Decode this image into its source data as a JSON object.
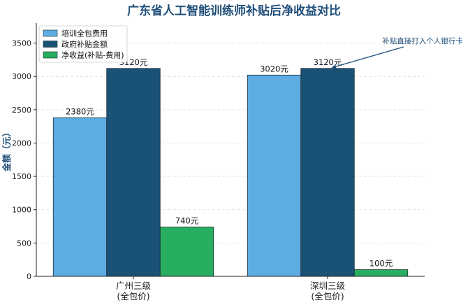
{
  "chart_data": {
    "type": "bar",
    "title": "广东省人工智能训练师补贴后净收益对比",
    "ylabel": "金额（元）",
    "xlabel": "",
    "categories": [
      [
        "广州三级",
        "(全包价)"
      ],
      [
        "深圳三级",
        "(全包价)"
      ]
    ],
    "ylim": [
      0,
      3800
    ],
    "yticks": [
      0,
      500,
      1000,
      1500,
      2000,
      2500,
      3000,
      3500
    ],
    "grid": "horizontal-dashed",
    "legend_position": "top-left",
    "series": [
      {
        "name": "培训全包费用",
        "values": [
          2380,
          3020
        ],
        "labels": [
          "2380元",
          "3020元"
        ],
        "color": "#5dade2"
      },
      {
        "name": "政府补贴金额",
        "values": [
          3120,
          3120
        ],
        "labels": [
          "3120元",
          "3120元"
        ],
        "color": "#1a5276"
      },
      {
        "name": "净收益(补贴-费用)",
        "values": [
          740,
          100
        ],
        "labels": [
          "740元",
          "100元"
        ],
        "color": "#27ae60"
      }
    ],
    "annotation": {
      "text": "补贴直接打入个人银行卡",
      "points_to": {
        "category_index": 1,
        "series_index": 1,
        "value": 3120
      }
    }
  }
}
